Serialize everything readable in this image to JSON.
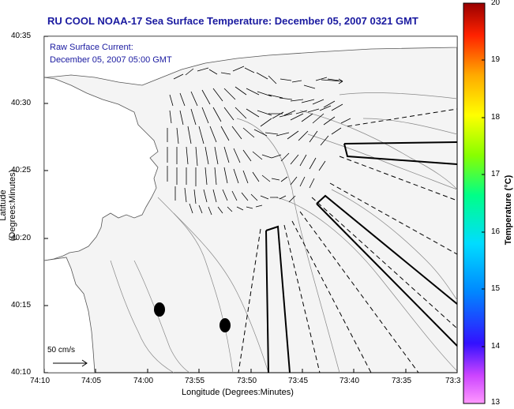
{
  "title": "RU COOL  NOAA-17  Sea Surface Temperature:  December 05, 2007 0321 GMT",
  "overlay": {
    "line1": "Raw Surface Current:",
    "line2": "December 05, 2007 05:00 GMT"
  },
  "scale_label": "50 cm/s",
  "axes": {
    "xlabel": "Longitude (Degrees:Minutes)",
    "ylabel": "Latitude (Degrees:Minutes)",
    "x_ticks": [
      "74:10",
      "74:05",
      "74:00",
      "73:55",
      "73:50",
      "73:45",
      "73:40",
      "73:35",
      "73:3"
    ],
    "y_ticks": [
      "40:35",
      "40:30",
      "40:25",
      "40:20",
      "40:15",
      "40:10"
    ]
  },
  "colorbar": {
    "label": "Temperature (°C)",
    "ticks": [
      "20",
      "19",
      "18",
      "17",
      "16",
      "15",
      "14",
      "13"
    ],
    "min": 13,
    "max": 20
  },
  "colors": {
    "title": "#1a1aa0",
    "land": "#ffffff",
    "ocean": "#f4f4f4"
  }
}
